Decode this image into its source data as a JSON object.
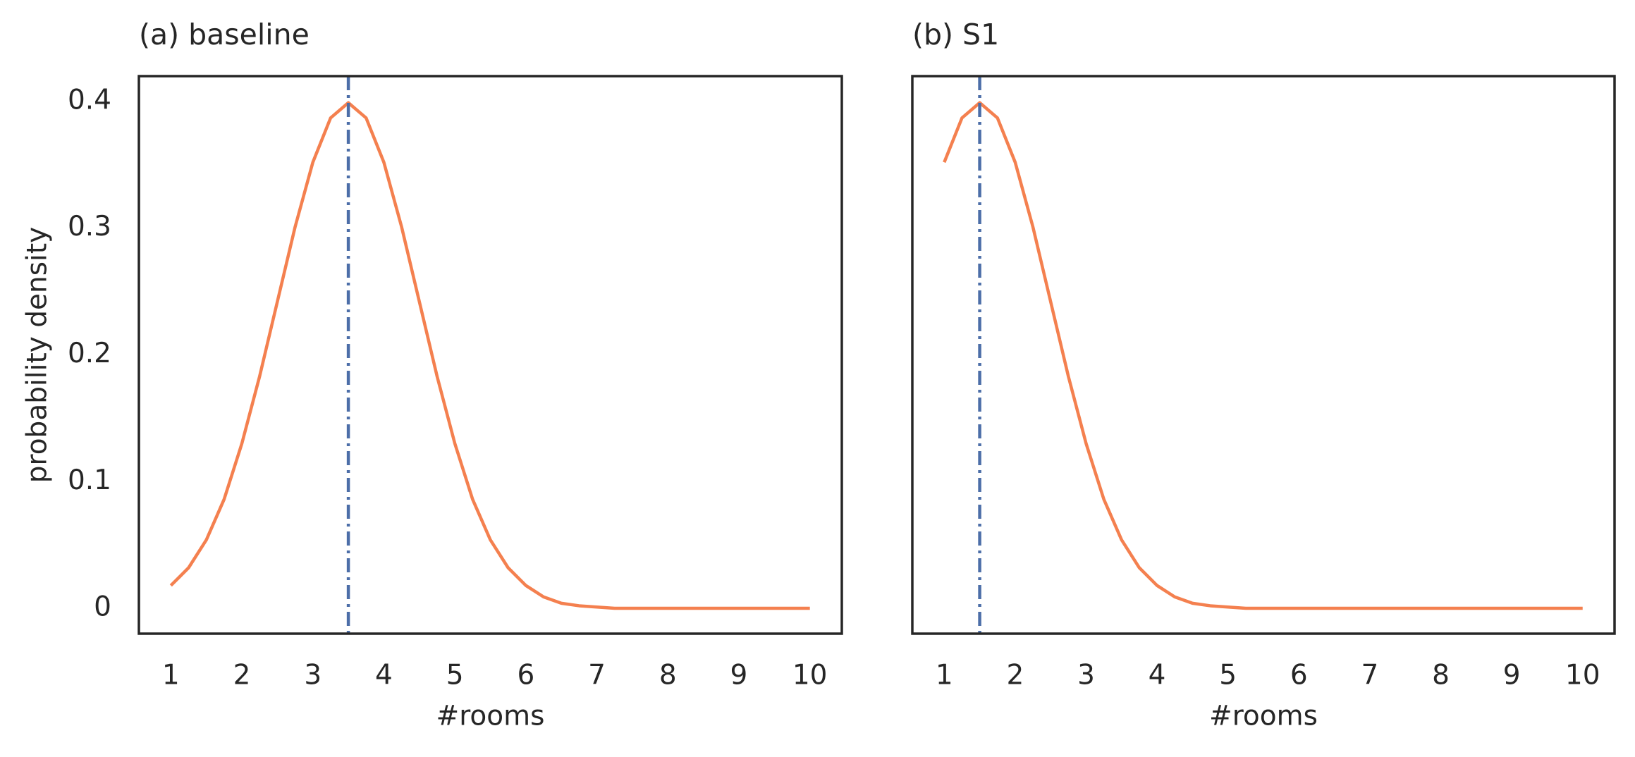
{
  "chart_data": [
    {
      "type": "line",
      "title": "(a) baseline",
      "xlabel": "#rooms",
      "ylabel": "probability density",
      "x": [
        1,
        1.25,
        1.5,
        1.75,
        2,
        2.25,
        2.5,
        2.75,
        3,
        3.25,
        3.5,
        3.75,
        4,
        4.25,
        4.5,
        4.75,
        5,
        5.25,
        5.5,
        5.75,
        6,
        6.25,
        6.5,
        6.75,
        7,
        7.25,
        7.5,
        7.75,
        8,
        8.25,
        8.5,
        8.75,
        9,
        9.25,
        9.5,
        9.75,
        10
      ],
      "values": [
        0.018,
        0.032,
        0.054,
        0.086,
        0.13,
        0.183,
        0.242,
        0.301,
        0.352,
        0.387,
        0.399,
        0.387,
        0.352,
        0.301,
        0.242,
        0.183,
        0.13,
        0.086,
        0.054,
        0.032,
        0.018,
        0.009,
        0.004,
        0.002,
        0.001,
        0,
        0,
        0,
        0,
        0,
        0,
        0,
        0,
        0,
        0,
        0,
        0
      ],
      "color": "#f4804f",
      "vline_x": 3.5,
      "vline_color": "#4c6ea8",
      "xlim": [
        0.55,
        10.45
      ],
      "xticks": [
        1,
        2,
        3,
        4,
        5,
        6,
        7,
        8,
        9,
        10
      ],
      "ylim": [
        -0.02,
        0.42
      ],
      "yticks": [
        0.0,
        0.1,
        0.2,
        0.3,
        0.4
      ]
    },
    {
      "type": "line",
      "title": "(b) S1",
      "xlabel": "#rooms",
      "x": [
        1,
        1.25,
        1.5,
        1.75,
        2,
        2.25,
        2.5,
        2.75,
        3,
        3.25,
        3.5,
        3.75,
        4,
        4.25,
        4.5,
        4.75,
        5,
        5.25,
        5.5,
        5.75,
        6,
        6.25,
        6.5,
        6.75,
        7,
        7.25,
        7.5,
        7.75,
        8,
        8.25,
        8.5,
        8.75,
        9,
        9.25,
        9.5,
        9.75,
        10
      ],
      "values": [
        0.352,
        0.387,
        0.399,
        0.387,
        0.352,
        0.301,
        0.242,
        0.183,
        0.13,
        0.086,
        0.054,
        0.032,
        0.018,
        0.009,
        0.004,
        0.002,
        0.001,
        0,
        0,
        0,
        0,
        0,
        0,
        0,
        0,
        0,
        0,
        0,
        0,
        0,
        0,
        0,
        0,
        0,
        0,
        0,
        0
      ],
      "color": "#f4804f",
      "vline_x": 1.5,
      "vline_color": "#4c6ea8",
      "xlim": [
        0.55,
        10.45
      ],
      "xticks": [
        1,
        2,
        3,
        4,
        5,
        6,
        7,
        8,
        9,
        10
      ],
      "ylim": [
        -0.02,
        0.42
      ]
    }
  ]
}
